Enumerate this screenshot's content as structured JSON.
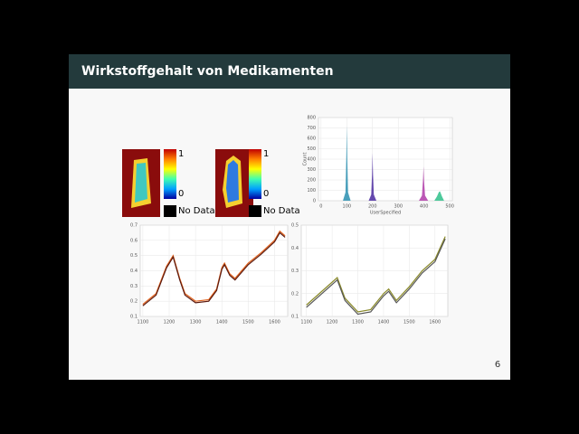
{
  "header": {
    "title": "Wirkstoffgehalt von Medikamenten"
  },
  "page_number": "6",
  "maps": [
    {
      "max_label": "1",
      "min_label": "0",
      "nodata_label": "No Data"
    },
    {
      "max_label": "1",
      "min_label": "0",
      "nodata_label": "No Data"
    }
  ],
  "chart_data": [
    {
      "type": "area",
      "x_label": "UserSpecified",
      "y_label": "Count",
      "xlim": [
        -10,
        510
      ],
      "ylim": [
        0,
        800
      ],
      "xticks": [
        0,
        100,
        200,
        300,
        400,
        500
      ],
      "yticks": [
        0,
        100,
        200,
        300,
        400,
        500,
        600,
        700,
        800
      ],
      "series": [
        {
          "color": "#2a8fb0",
          "x": [
            85,
            95,
            98,
            100,
            102,
            105,
            115
          ],
          "values": [
            0,
            80,
            400,
            720,
            400,
            80,
            0
          ]
        },
        {
          "color": "#4b2aa0",
          "x": [
            185,
            195,
            198,
            200,
            202,
            205,
            215
          ],
          "values": [
            0,
            60,
            250,
            460,
            250,
            60,
            0
          ]
        },
        {
          "color": "#b03aa8",
          "x": [
            380,
            392,
            396,
            398,
            400,
            404,
            416
          ],
          "values": [
            0,
            50,
            200,
            330,
            200,
            50,
            0
          ]
        },
        {
          "color": "#2fbf8a",
          "x": [
            440,
            450,
            458,
            462,
            470,
            478
          ],
          "values": [
            0,
            40,
            85,
            90,
            40,
            0
          ]
        }
      ]
    },
    {
      "type": "line",
      "xlim": [
        1090,
        1650
      ],
      "ylim": [
        0.1,
        0.7
      ],
      "xticks": [
        1100,
        1200,
        1300,
        1400,
        1500,
        1600
      ],
      "yticks": [
        0.1,
        0.2,
        0.3,
        0.4,
        0.5,
        0.6,
        0.7
      ],
      "x": [
        1100,
        1150,
        1190,
        1215,
        1240,
        1260,
        1300,
        1350,
        1380,
        1400,
        1410,
        1430,
        1450,
        1500,
        1550,
        1600,
        1620,
        1640
      ],
      "series": [
        {
          "color": "#e0601a",
          "values": [
            0.18,
            0.25,
            0.43,
            0.5,
            0.35,
            0.25,
            0.2,
            0.21,
            0.28,
            0.42,
            0.45,
            0.38,
            0.35,
            0.45,
            0.52,
            0.6,
            0.66,
            0.63
          ]
        },
        {
          "color": "#5a1a10",
          "values": [
            0.17,
            0.24,
            0.42,
            0.49,
            0.34,
            0.24,
            0.19,
            0.2,
            0.27,
            0.41,
            0.44,
            0.37,
            0.34,
            0.44,
            0.51,
            0.59,
            0.65,
            0.62
          ]
        }
      ]
    },
    {
      "type": "line",
      "xlim": [
        1080,
        1650
      ],
      "ylim": [
        0.1,
        0.5
      ],
      "xticks": [
        1100,
        1200,
        1300,
        1400,
        1500,
        1600
      ],
      "yticks": [
        0.1,
        0.2,
        0.3,
        0.4,
        0.5
      ],
      "x": [
        1100,
        1150,
        1200,
        1220,
        1250,
        1300,
        1350,
        1400,
        1420,
        1450,
        1500,
        1550,
        1600,
        1640
      ],
      "series": [
        {
          "color": "#8a8a2a",
          "values": [
            0.15,
            0.2,
            0.25,
            0.27,
            0.18,
            0.12,
            0.13,
            0.2,
            0.22,
            0.17,
            0.23,
            0.3,
            0.35,
            0.45
          ]
        },
        {
          "color": "#555555",
          "values": [
            0.14,
            0.19,
            0.24,
            0.26,
            0.17,
            0.11,
            0.12,
            0.19,
            0.21,
            0.16,
            0.22,
            0.29,
            0.34,
            0.44
          ]
        }
      ]
    }
  ]
}
